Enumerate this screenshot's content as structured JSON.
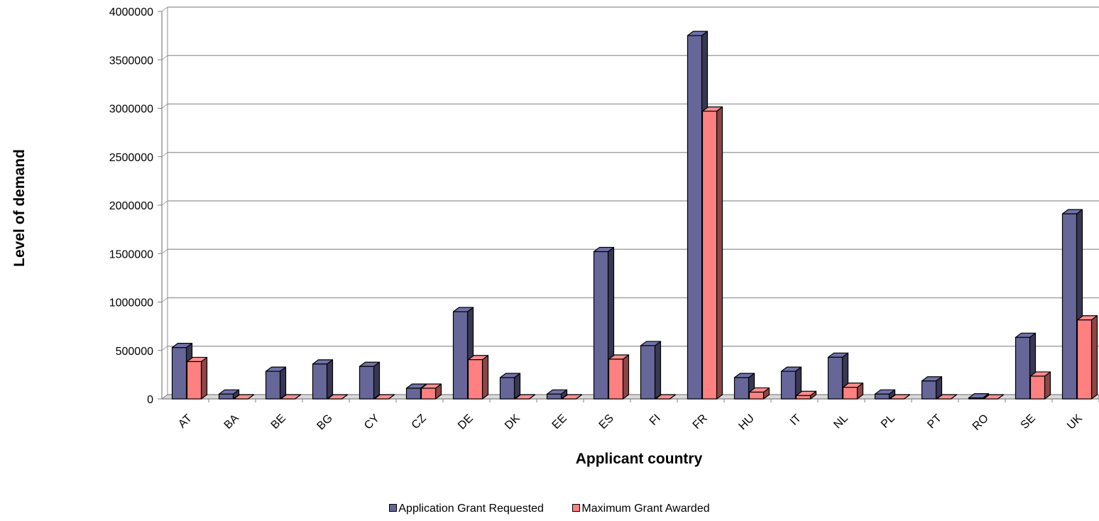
{
  "chart_data": {
    "type": "bar",
    "title": "",
    "xlabel": "Applicant country",
    "ylabel": "Level of demand",
    "ylim": [
      0,
      4000000
    ],
    "yticks": [
      0,
      500000,
      1000000,
      1500000,
      2000000,
      2500000,
      3000000,
      3500000,
      4000000
    ],
    "ytick_labels": [
      "0",
      "500000",
      "1000000",
      "1500000",
      "2000000",
      "2500000",
      "3000000",
      "3500000",
      "4000000"
    ],
    "grid": true,
    "legend_position": "bottom",
    "categories": [
      "AT",
      "BA",
      "BE",
      "BG",
      "CY",
      "CZ",
      "DE",
      "DK",
      "EE",
      "ES",
      "FI",
      "FR",
      "HU",
      "IT",
      "NL",
      "PL",
      "PT",
      "RO",
      "SE",
      "UK"
    ],
    "series": [
      {
        "name": "Application Grant Requested",
        "color": "#666699",
        "values": [
          530000,
          50000,
          285000,
          360000,
          335000,
          110000,
          900000,
          220000,
          50000,
          1520000,
          550000,
          3750000,
          220000,
          285000,
          430000,
          50000,
          185000,
          10000,
          635000,
          1910000
        ]
      },
      {
        "name": "Maximum Grant Awarded",
        "color": "#FF8080",
        "values": [
          385000,
          0,
          0,
          0,
          0,
          110000,
          405000,
          0,
          0,
          410000,
          0,
          2970000,
          70000,
          35000,
          120000,
          0,
          0,
          0,
          235000,
          815000
        ]
      }
    ]
  }
}
